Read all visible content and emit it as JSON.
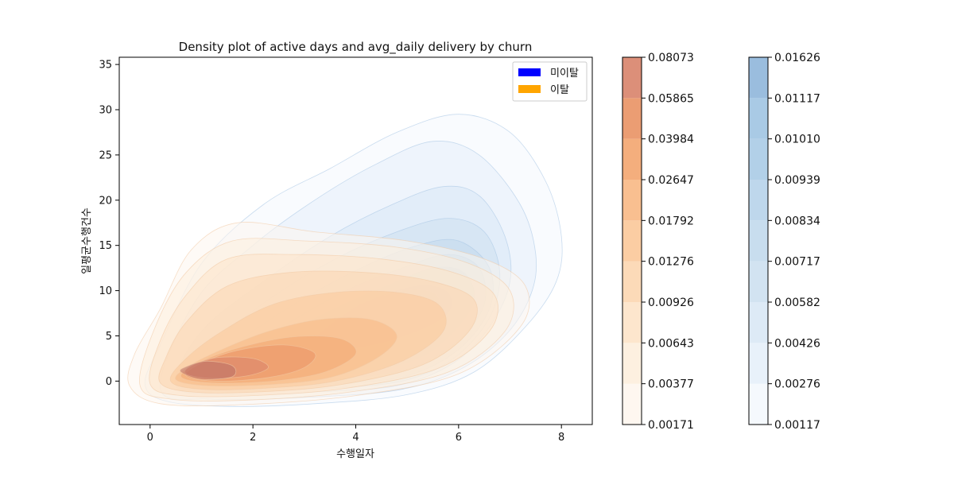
{
  "chart_data": {
    "type": "density",
    "title": "Density plot of active days and avg_daily delivery by churn",
    "xlabel": "수행일자",
    "ylabel": "일평균수행건수",
    "xlim": [
      -0.6,
      8.6
    ],
    "ylim": [
      -4.8,
      35.8
    ],
    "xticks": [
      0,
      2,
      4,
      6,
      8
    ],
    "yticks": [
      0,
      5,
      10,
      15,
      20,
      25,
      30,
      35
    ],
    "grid": false,
    "legend_position": "top-right",
    "legend": [
      {
        "label": "미이탈",
        "color": "#0000ff"
      },
      {
        "label": "이탈",
        "color": "#ffa500"
      }
    ],
    "series": [
      {
        "name": "미이탈",
        "color": "#4a90d9",
        "colormap": "Blues",
        "peak": {
          "x": 5.0,
          "y": 9.5
        },
        "levels": [
          0.00117,
          0.00276,
          0.00426,
          0.00582,
          0.00717,
          0.00834,
          0.00939,
          0.0101,
          0.01117,
          0.01626
        ],
        "contours": [
          [
            [
              -0.1,
              -0.3
            ],
            [
              0.3,
              -2.2
            ],
            [
              1.5,
              -2.8
            ],
            [
              3.2,
              -2.5
            ],
            [
              5.0,
              -1.5
            ],
            [
              6.3,
              1.0
            ],
            [
              7.3,
              6.0
            ],
            [
              7.9,
              11.0
            ],
            [
              8.0,
              16.0
            ],
            [
              7.7,
              22.0
            ],
            [
              7.0,
              27.5
            ],
            [
              6.0,
              29.5
            ],
            [
              4.8,
              27.5
            ],
            [
              3.5,
              23.5
            ],
            [
              2.2,
              19.5
            ],
            [
              1.0,
              13.0
            ],
            [
              0.2,
              4.0
            ]
          ],
          [
            [
              0.2,
              -0.8
            ],
            [
              1.2,
              -2.0
            ],
            [
              3.0,
              -1.8
            ],
            [
              4.8,
              -1.0
            ],
            [
              6.0,
              1.2
            ],
            [
              6.9,
              5.0
            ],
            [
              7.4,
              9.5
            ],
            [
              7.5,
              14.0
            ],
            [
              7.2,
              19.5
            ],
            [
              6.4,
              25.0
            ],
            [
              5.5,
              26.5
            ],
            [
              4.4,
              24.0
            ],
            [
              3.2,
              20.0
            ],
            [
              2.0,
              15.0
            ],
            [
              0.9,
              9.0
            ]
          ],
          [
            [
              0.5,
              -0.5
            ],
            [
              1.5,
              -1.5
            ],
            [
              3.2,
              -1.2
            ],
            [
              4.8,
              -0.5
            ],
            [
              5.9,
              2.0
            ],
            [
              6.6,
              6.0
            ],
            [
              7.0,
              11.0
            ],
            [
              6.9,
              16.0
            ],
            [
              6.4,
              20.5
            ],
            [
              5.7,
              21.5
            ],
            [
              4.7,
              19.5
            ],
            [
              3.5,
              16.0
            ],
            [
              2.2,
              11.0
            ],
            [
              1.0,
              5.5
            ]
          ],
          [
            [
              0.7,
              0.0
            ],
            [
              1.8,
              -1.0
            ],
            [
              3.4,
              -0.8
            ],
            [
              4.9,
              0.0
            ],
            [
              5.9,
              2.5
            ],
            [
              6.6,
              7.0
            ],
            [
              6.8,
              12.0
            ],
            [
              6.5,
              16.5
            ],
            [
              5.8,
              18.0
            ],
            [
              4.8,
              16.5
            ],
            [
              3.6,
              13.5
            ],
            [
              2.3,
              9.0
            ],
            [
              1.2,
              4.0
            ]
          ],
          [
            [
              0.9,
              0.4
            ],
            [
              2.0,
              -0.5
            ],
            [
              3.6,
              -0.3
            ],
            [
              5.0,
              0.6
            ],
            [
              6.0,
              3.5
            ],
            [
              6.6,
              8.0
            ],
            [
              6.6,
              12.5
            ],
            [
              6.0,
              15.5
            ],
            [
              5.2,
              15.0
            ],
            [
              4.1,
              12.5
            ],
            [
              2.8,
              8.5
            ],
            [
              1.5,
              3.5
            ]
          ],
          [
            [
              1.1,
              0.9
            ],
            [
              2.3,
              0.1
            ],
            [
              3.8,
              0.3
            ],
            [
              5.1,
              1.5
            ],
            [
              6.0,
              4.5
            ],
            [
              6.5,
              8.5
            ],
            [
              6.4,
              12.5
            ],
            [
              5.8,
              14.0
            ],
            [
              4.9,
              12.5
            ],
            [
              3.8,
              10.0
            ],
            [
              2.7,
              6.5
            ],
            [
              1.6,
              3.2
            ]
          ],
          [
            [
              1.4,
              1.3
            ],
            [
              2.6,
              0.6
            ],
            [
              4.0,
              0.9
            ],
            [
              5.2,
              2.5
            ],
            [
              5.9,
              5.5
            ],
            [
              6.3,
              9.0
            ],
            [
              6.1,
              12.0
            ],
            [
              5.5,
              12.5
            ],
            [
              4.6,
              10.5
            ],
            [
              3.6,
              8.0
            ],
            [
              2.5,
              4.8
            ]
          ],
          [
            [
              2.0,
              1.8
            ],
            [
              3.2,
              1.4
            ],
            [
              4.4,
              2.2
            ],
            [
              5.3,
              4.0
            ],
            [
              5.9,
              7.0
            ],
            [
              5.9,
              10.0
            ],
            [
              5.4,
              11.0
            ],
            [
              4.6,
              9.5
            ],
            [
              3.7,
              7.0
            ],
            [
              2.7,
              4.0
            ]
          ],
          [
            [
              3.0,
              3.3
            ],
            [
              4.2,
              3.8
            ],
            [
              5.2,
              5.5
            ],
            [
              5.8,
              7.5
            ],
            [
              5.8,
              9.8
            ],
            [
              5.3,
              10.6
            ],
            [
              4.5,
              9.5
            ],
            [
              3.8,
              7.5
            ]
          ],
          [
            [
              4.2,
              6.0
            ],
            [
              5.0,
              6.5
            ],
            [
              5.6,
              8.0
            ],
            [
              5.5,
              9.8
            ],
            [
              4.9,
              10.0
            ],
            [
              4.4,
              8.8
            ]
          ]
        ]
      },
      {
        "name": "이탈",
        "color": "#e8874a",
        "colormap": "Oranges",
        "peak": {
          "x": 1.1,
          "y": 1.2
        },
        "levels": [
          0.00171,
          0.00377,
          0.00643,
          0.00926,
          0.01276,
          0.01792,
          0.02647,
          0.03984,
          0.05865,
          0.08073
        ],
        "contours": [
          [
            [
              -0.4,
              -0.5
            ],
            [
              0.2,
              -2.5
            ],
            [
              1.8,
              -2.6
            ],
            [
              4.0,
              -1.6
            ],
            [
              6.0,
              0.8
            ],
            [
              7.2,
              6.0
            ],
            [
              7.3,
              10.5
            ],
            [
              6.5,
              13.5
            ],
            [
              5.0,
              15.5
            ],
            [
              3.2,
              16.5
            ],
            [
              1.7,
              17.5
            ],
            [
              0.8,
              14.5
            ],
            [
              0.2,
              8.0
            ],
            [
              -0.3,
              3.0
            ]
          ],
          [
            [
              -0.2,
              -0.4
            ],
            [
              0.4,
              -2.0
            ],
            [
              1.9,
              -2.1
            ],
            [
              3.9,
              -1.2
            ],
            [
              5.8,
              1.0
            ],
            [
              6.9,
              5.5
            ],
            [
              7.0,
              10.0
            ],
            [
              6.2,
              13.0
            ],
            [
              4.8,
              14.8
            ],
            [
              3.0,
              15.5
            ],
            [
              1.6,
              15.5
            ],
            [
              0.7,
              12.0
            ],
            [
              0.1,
              6.0
            ]
          ],
          [
            [
              0.0,
              -0.3
            ],
            [
              0.6,
              -1.6
            ],
            [
              2.0,
              -1.6
            ],
            [
              3.8,
              -0.8
            ],
            [
              5.6,
              1.4
            ],
            [
              6.6,
              5.5
            ],
            [
              6.7,
              9.5
            ],
            [
              5.9,
              12.0
            ],
            [
              4.5,
              13.5
            ],
            [
              2.8,
              14.0
            ],
            [
              1.5,
              13.5
            ],
            [
              0.7,
              9.5
            ],
            [
              0.2,
              4.5
            ]
          ],
          [
            [
              0.2,
              -0.2
            ],
            [
              0.8,
              -1.2
            ],
            [
              2.1,
              -1.2
            ],
            [
              3.7,
              -0.4
            ],
            [
              5.3,
              1.8
            ],
            [
              6.2,
              5.5
            ],
            [
              6.3,
              9.0
            ],
            [
              5.5,
              11.0
            ],
            [
              4.2,
              12.0
            ],
            [
              2.7,
              12.0
            ],
            [
              1.5,
              10.5
            ],
            [
              0.7,
              6.5
            ],
            [
              0.3,
              2.5
            ]
          ],
          [
            [
              0.4,
              0.0
            ],
            [
              1.0,
              -0.9
            ],
            [
              2.2,
              -0.8
            ],
            [
              3.6,
              0.0
            ],
            [
              4.9,
              2.2
            ],
            [
              5.7,
              5.5
            ],
            [
              5.6,
              8.5
            ],
            [
              4.8,
              9.8
            ],
            [
              3.6,
              9.8
            ],
            [
              2.4,
              8.5
            ],
            [
              1.4,
              5.5
            ],
            [
              0.7,
              2.5
            ]
          ],
          [
            [
              0.5,
              0.2
            ],
            [
              1.1,
              -0.5
            ],
            [
              2.3,
              -0.4
            ],
            [
              3.5,
              0.4
            ],
            [
              4.4,
              2.5
            ],
            [
              4.8,
              5.0
            ],
            [
              4.3,
              6.8
            ],
            [
              3.3,
              6.8
            ],
            [
              2.3,
              5.5
            ],
            [
              1.4,
              3.5
            ],
            [
              0.8,
              1.8
            ]
          ],
          [
            [
              0.6,
              0.5
            ],
            [
              1.2,
              -0.2
            ],
            [
              2.4,
              0.0
            ],
            [
              3.4,
              1.0
            ],
            [
              4.0,
              3.0
            ],
            [
              3.7,
              4.7
            ],
            [
              2.8,
              4.9
            ],
            [
              1.8,
              3.8
            ],
            [
              1.0,
              2.2
            ]
          ],
          [
            [
              0.7,
              0.6
            ],
            [
              1.3,
              0.0
            ],
            [
              2.3,
              0.4
            ],
            [
              3.0,
              1.5
            ],
            [
              3.2,
              3.1
            ],
            [
              2.6,
              4.0
            ],
            [
              1.7,
              3.4
            ],
            [
              1.0,
              2.0
            ]
          ],
          [
            [
              0.7,
              0.8
            ],
            [
              1.2,
              0.3
            ],
            [
              1.9,
              0.6
            ],
            [
              2.3,
              1.5
            ],
            [
              2.0,
              2.5
            ],
            [
              1.3,
              2.6
            ],
            [
              0.8,
              1.7
            ]
          ],
          [
            [
              0.6,
              1.0
            ],
            [
              1.0,
              0.2
            ],
            [
              1.6,
              0.5
            ],
            [
              1.6,
              1.7
            ],
            [
              1.1,
              2.2
            ],
            [
              0.7,
              1.6
            ]
          ]
        ]
      }
    ]
  }
}
